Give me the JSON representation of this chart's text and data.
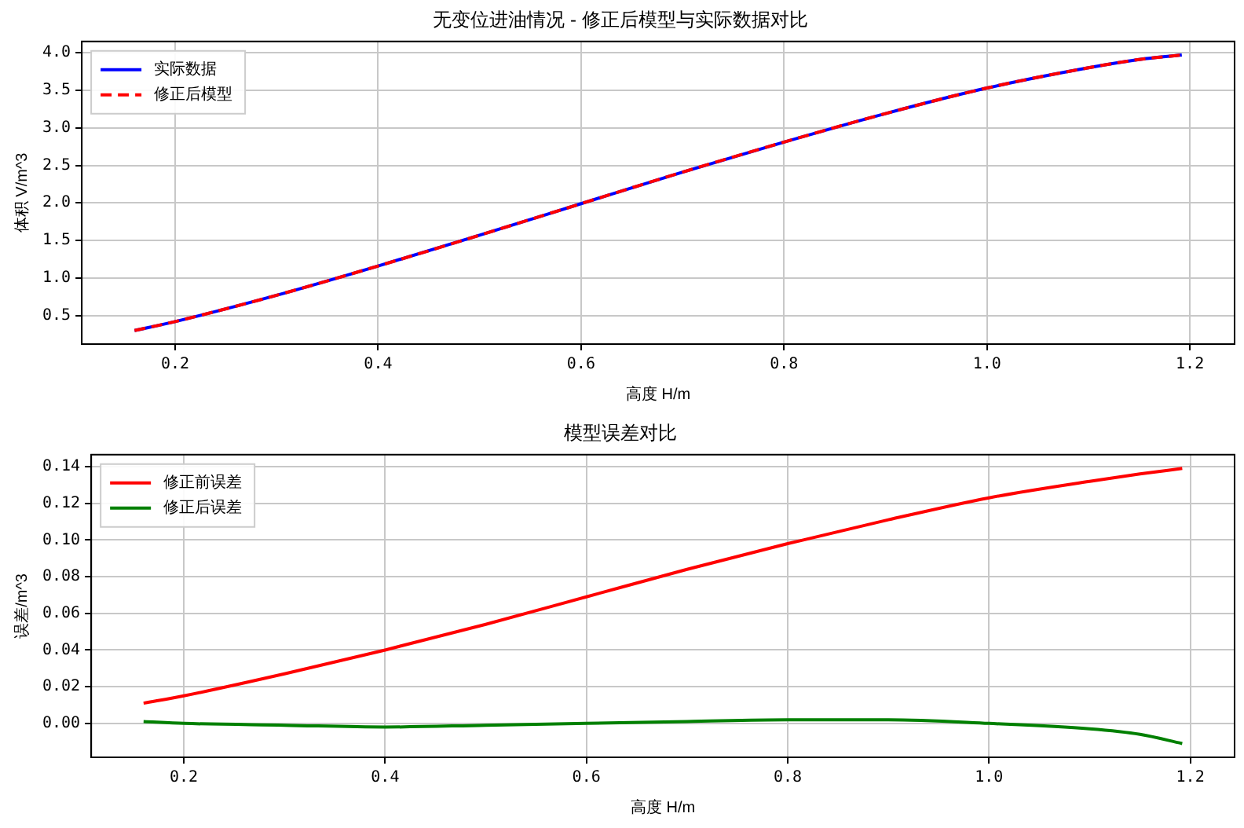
{
  "chart_data": [
    {
      "type": "line",
      "title": "无变位进油情况 - 修正后模型与实际数据对比",
      "xlabel": "高度 H/m",
      "ylabel": "体积 V/m^3",
      "x": [
        0.16,
        0.2,
        0.3,
        0.4,
        0.5,
        0.6,
        0.7,
        0.8,
        0.9,
        1.0,
        1.1,
        1.15,
        1.192
      ],
      "series": [
        {
          "name": "实际数据",
          "color": "#0000ff",
          "line_style": "solid",
          "values": [
            0.3,
            0.42,
            0.77,
            1.16,
            1.57,
            1.99,
            2.41,
            2.81,
            3.19,
            3.53,
            3.8,
            3.91,
            3.97
          ]
        },
        {
          "name": "修正后模型",
          "color": "#ff0000",
          "line_style": "dashed",
          "values": [
            0.3,
            0.42,
            0.77,
            1.16,
            1.57,
            1.99,
            2.41,
            2.81,
            3.19,
            3.53,
            3.8,
            3.91,
            3.97
          ]
        }
      ],
      "xlim": [
        0.108,
        1.244
      ],
      "ylim": [
        0.12,
        4.15
      ],
      "xticks": [
        {
          "value": 0.2,
          "label": "0.2"
        },
        {
          "value": 0.4,
          "label": "0.4"
        },
        {
          "value": 0.6,
          "label": "0.6"
        },
        {
          "value": 0.8,
          "label": "0.8"
        },
        {
          "value": 1.0,
          "label": "1.0"
        },
        {
          "value": 1.2,
          "label": "1.2"
        }
      ],
      "yticks": [
        {
          "value": 0.5,
          "label": "0.5"
        },
        {
          "value": 1.0,
          "label": "1.0"
        },
        {
          "value": 1.5,
          "label": "1.5"
        },
        {
          "value": 2.0,
          "label": "2.0"
        },
        {
          "value": 2.5,
          "label": "2.5"
        },
        {
          "value": 3.0,
          "label": "3.0"
        },
        {
          "value": 3.5,
          "label": "3.5"
        },
        {
          "value": 4.0,
          "label": "4.0"
        }
      ],
      "grid": true,
      "legend": "top left"
    },
    {
      "type": "line",
      "title": "模型误差对比",
      "xlabel": "高度 H/m",
      "ylabel": "误差/m^3",
      "x": [
        0.16,
        0.2,
        0.3,
        0.4,
        0.5,
        0.6,
        0.7,
        0.8,
        0.9,
        1.0,
        1.1,
        1.15,
        1.192
      ],
      "series": [
        {
          "name": "修正前误差",
          "color": "#ff0000",
          "line_style": "solid",
          "values": [
            0.011,
            0.015,
            0.027,
            0.04,
            0.054,
            0.069,
            0.084,
            0.098,
            0.111,
            0.123,
            0.132,
            0.136,
            0.139
          ]
        },
        {
          "name": "修正后误差",
          "color": "#008000",
          "line_style": "solid",
          "values": [
            0.001,
            0.0,
            -0.001,
            -0.002,
            -0.001,
            0.0,
            0.001,
            0.002,
            0.002,
            0.0,
            -0.003,
            -0.006,
            -0.011
          ]
        }
      ],
      "xlim": [
        0.108,
        1.244
      ],
      "ylim": [
        -0.0185,
        0.1465
      ],
      "xticks": [
        {
          "value": 0.2,
          "label": "0.2"
        },
        {
          "value": 0.4,
          "label": "0.4"
        },
        {
          "value": 0.6,
          "label": "0.6"
        },
        {
          "value": 0.8,
          "label": "0.8"
        },
        {
          "value": 1.0,
          "label": "1.0"
        },
        {
          "value": 1.2,
          "label": "1.2"
        }
      ],
      "yticks": [
        {
          "value": 0.0,
          "label": "0.00"
        },
        {
          "value": 0.02,
          "label": "0.02"
        },
        {
          "value": 0.04,
          "label": "0.04"
        },
        {
          "value": 0.06,
          "label": "0.06"
        },
        {
          "value": 0.08,
          "label": "0.08"
        },
        {
          "value": 0.1,
          "label": "0.10"
        },
        {
          "value": 0.12,
          "label": "0.12"
        },
        {
          "value": 0.14,
          "label": "0.14"
        }
      ],
      "grid": true,
      "legend": "top left"
    }
  ]
}
